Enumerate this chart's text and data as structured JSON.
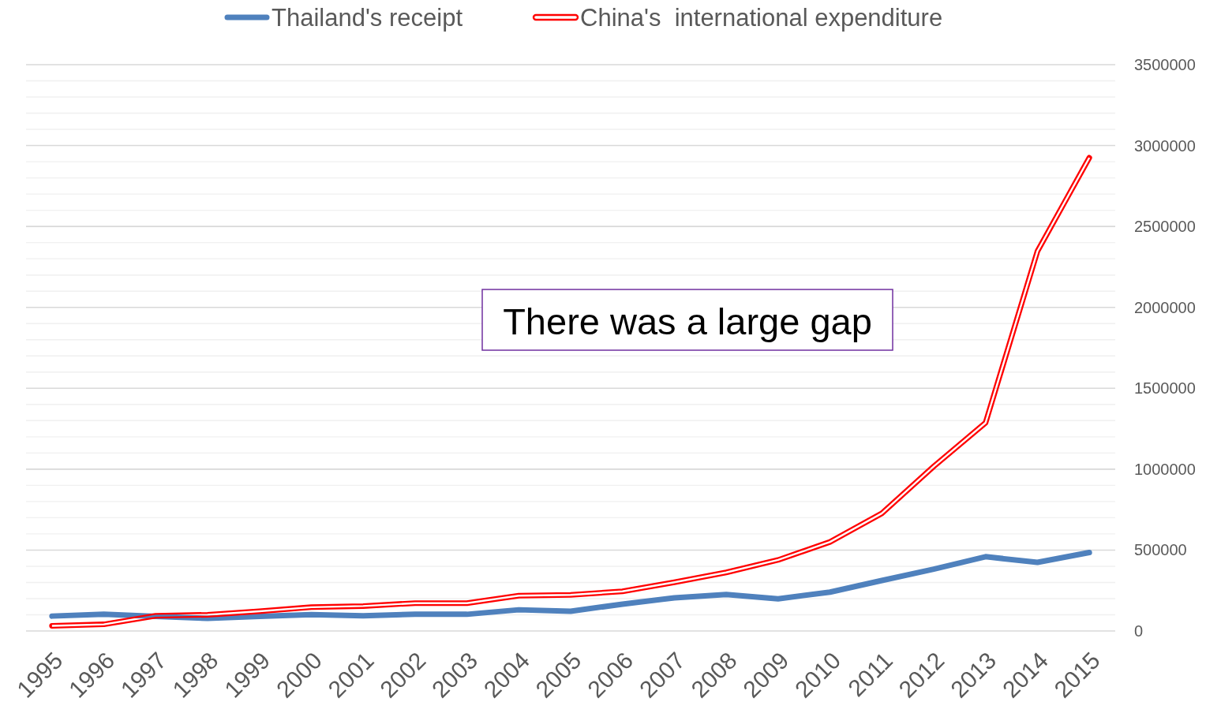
{
  "chart_data": {
    "type": "line",
    "categories": [
      "1995",
      "1996",
      "1997",
      "1998",
      "1999",
      "2000",
      "2001",
      "2002",
      "2003",
      "2004",
      "2005",
      "2006",
      "2007",
      "2008",
      "2009",
      "2010",
      "2011",
      "2012",
      "2013",
      "2014",
      "2015"
    ],
    "series": [
      {
        "name": "Thailand's receipt",
        "color": "#4f81bd",
        "values": [
          92000,
          103000,
          90000,
          78000,
          90000,
          101000,
          94000,
          103000,
          103000,
          131000,
          122000,
          166000,
          205000,
          225000,
          199000,
          240000,
          312000,
          382000,
          459000,
          424000,
          485000
        ]
      },
      {
        "name": "China's  international expenditure",
        "color": "#ff0000",
        "values": [
          32000,
          41000,
          94000,
          100000,
          122000,
          147000,
          154000,
          172000,
          172000,
          218000,
          223000,
          245000,
          301000,
          362000,
          439000,
          550000,
          727000,
          1017000,
          1287000,
          2347000,
          2925000
        ]
      }
    ],
    "ylim": [
      0,
      3500000
    ],
    "yticks": [
      0,
      {
        "value": 100000,
        "label": null
      },
      {
        "value": 200000,
        "label": null
      },
      {
        "value": 300000,
        "label": null
      },
      {
        "value": 400000,
        "label": null
      },
      500000,
      {
        "value": 600000,
        "label": null
      },
      {
        "value": 700000,
        "label": null
      },
      {
        "value": 800000,
        "label": null
      },
      {
        "value": 900000,
        "label": null
      },
      1000000,
      {
        "value": 1100000,
        "label": null
      },
      {
        "value": 1200000,
        "label": null
      },
      {
        "value": 1300000,
        "label": null
      },
      {
        "value": 1400000,
        "label": null
      },
      1500000,
      {
        "value": 1600000,
        "label": null
      },
      {
        "value": 1700000,
        "label": null
      },
      {
        "value": 1800000,
        "label": null
      },
      {
        "value": 1900000,
        "label": null
      },
      2000000,
      {
        "value": 2100000,
        "label": null
      },
      {
        "value": 2200000,
        "label": null
      },
      {
        "value": 2300000,
        "label": null
      },
      {
        "value": 2400000,
        "label": null
      },
      2500000,
      {
        "value": 2600000,
        "label": null
      },
      {
        "value": 2700000,
        "label": null
      },
      {
        "value": 2800000,
        "label": null
      },
      {
        "value": 2900000,
        "label": null
      },
      3000000,
      {
        "value": 3100000,
        "label": null
      },
      {
        "value": 3200000,
        "label": null
      },
      {
        "value": 3300000,
        "label": null
      },
      {
        "value": 3400000,
        "label": null
      },
      3500000
    ],
    "grid": true,
    "legend": "top",
    "annotations": [
      "There was a large gap"
    ]
  }
}
